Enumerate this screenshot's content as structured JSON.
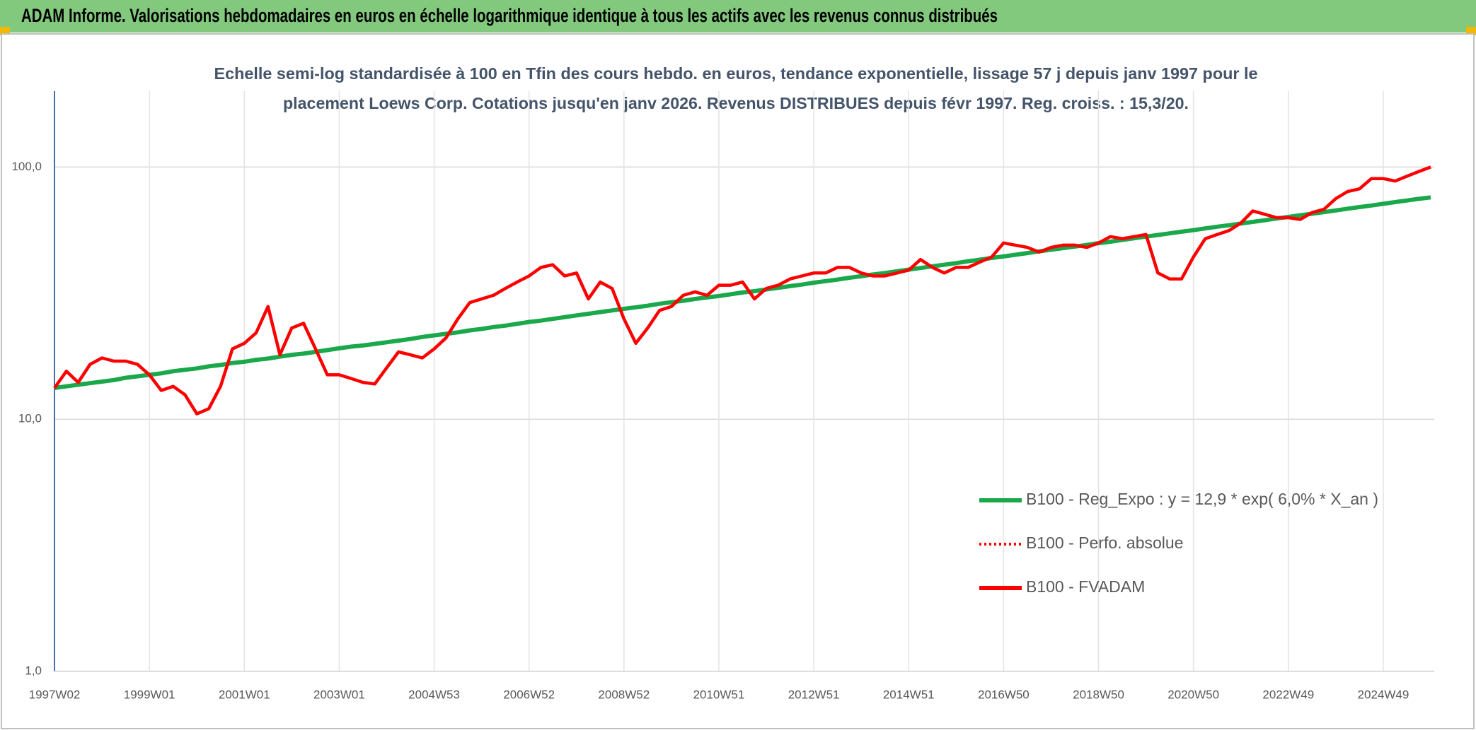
{
  "chart_data": {
    "type": "line",
    "title": "ADAM Informe. Valorisations hebdomadaires en euros en échelle logarithmique identique à tous les actifs avec les revenus connus distribués",
    "subtitle": [
      "Echelle semi-log standardisée à 100 en Tfin des cours hebdo. en euros, tendance exponentielle, lissage 57 j depuis janv 1997 pour le",
      "placement Loews Corp. Cotations jusqu'en janv 2026. Revenus DISTRIBUES depuis févr 1997. Reg. croiss. : 15,3/20."
    ],
    "categories": [
      "1997W02",
      null,
      null,
      null,
      null,
      null,
      null,
      null,
      "1999W01",
      null,
      null,
      null,
      null,
      null,
      null,
      null,
      "2001W01",
      null,
      null,
      null,
      null,
      null,
      null,
      null,
      "2003W01",
      null,
      null,
      null,
      null,
      null,
      null,
      null,
      "2004W53",
      null,
      null,
      null,
      null,
      null,
      null,
      null,
      "2006W52",
      null,
      null,
      null,
      null,
      null,
      null,
      null,
      "2008W52",
      null,
      null,
      null,
      null,
      null,
      null,
      null,
      "2010W51",
      null,
      null,
      null,
      null,
      null,
      null,
      null,
      "2012W51",
      null,
      null,
      null,
      null,
      null,
      null,
      null,
      "2014W51",
      null,
      null,
      null,
      null,
      null,
      null,
      null,
      "2016W50",
      null,
      null,
      null,
      null,
      null,
      null,
      null,
      "2018W50",
      null,
      null,
      null,
      null,
      null,
      null,
      null,
      "2020W50",
      null,
      null,
      null,
      null,
      null,
      null,
      null,
      "2022W49",
      null,
      null,
      null,
      null,
      null,
      null,
      null,
      "2024W49",
      null,
      null,
      null,
      null
    ],
    "series": [
      {
        "name": "B100 - Reg_Expo : y = 12,9 * exp( 6,0% *  X_an )",
        "color": "#1aa84b",
        "style": "solid",
        "values": [
          13.3,
          13.5,
          13.7,
          13.9,
          14.1,
          14.3,
          14.6,
          14.8,
          15.0,
          15.2,
          15.5,
          15.7,
          15.9,
          16.2,
          16.4,
          16.7,
          16.9,
          17.2,
          17.4,
          17.7,
          18.0,
          18.2,
          18.5,
          18.8,
          19.1,
          19.4,
          19.6,
          19.9,
          20.2,
          20.5,
          20.8,
          21.2,
          21.5,
          21.8,
          22.1,
          22.5,
          22.8,
          23.2,
          23.5,
          23.9,
          24.3,
          24.6,
          25.0,
          25.4,
          25.8,
          26.2,
          26.6,
          27.0,
          27.4,
          27.8,
          28.2,
          28.7,
          29.1,
          29.5,
          30.0,
          30.4,
          30.8,
          31.3,
          31.8,
          32.2,
          32.7,
          33.2,
          33.7,
          34.2,
          34.8,
          35.3,
          35.8,
          36.4,
          36.9,
          37.5,
          38.0,
          38.6,
          39.2,
          39.8,
          40.4,
          41.0,
          41.6,
          42.3,
          42.9,
          43.6,
          44.2,
          44.9,
          45.6,
          46.3,
          47.0,
          47.7,
          48.4,
          49.1,
          49.9,
          50.6,
          51.4,
          52.2,
          53.0,
          53.8,
          54.6,
          55.4,
          56.2,
          57.1,
          58.0,
          58.8,
          59.7,
          60.6,
          61.5,
          62.5,
          63.4,
          64.4,
          65.3,
          66.3,
          67.3,
          68.4,
          69.4,
          70.4,
          71.5,
          72.6,
          73.7,
          74.8,
          75.8
        ]
      },
      {
        "name": "B100 - Perfo. absolue",
        "color": "#ff0000",
        "style": "dotted",
        "values": [
          13.3,
          15.5,
          14,
          16.5,
          17.5,
          17,
          17,
          16.5,
          15,
          13,
          13.5,
          12.5,
          10.5,
          11,
          13.5,
          19,
          20,
          22,
          28,
          18,
          23,
          24,
          19,
          15,
          15,
          14.5,
          14,
          13.8,
          16,
          18.5,
          18,
          17.5,
          19,
          21,
          25,
          29,
          30,
          31,
          33,
          35,
          37,
          40,
          41,
          37,
          38,
          30,
          35,
          33,
          25,
          20,
          23,
          27,
          28,
          31,
          32,
          31,
          34,
          34,
          35,
          30,
          33,
          34,
          36,
          37,
          38,
          38,
          40,
          40,
          38,
          37,
          37,
          38,
          39,
          43,
          40,
          38,
          40,
          40,
          42,
          44,
          50,
          49,
          48,
          46,
          48,
          49,
          49,
          48,
          50,
          53,
          52,
          53,
          54,
          38,
          36,
          36,
          44,
          52,
          54,
          56,
          60,
          67,
          65,
          63,
          63,
          62,
          66,
          68,
          75,
          80,
          82,
          90,
          90,
          88,
          92,
          96,
          100
        ]
      },
      {
        "name": "B100 - FVADAM",
        "color": "#ff0000",
        "style": "solid",
        "values": [
          13.3,
          15.5,
          14,
          16.5,
          17.5,
          17,
          17,
          16.5,
          15,
          13,
          13.5,
          12.5,
          10.5,
          11,
          13.5,
          19,
          20,
          22,
          28,
          18,
          23,
          24,
          19,
          15,
          15,
          14.5,
          14,
          13.8,
          16,
          18.5,
          18,
          17.5,
          19,
          21,
          25,
          29,
          30,
          31,
          33,
          35,
          37,
          40,
          41,
          37,
          38,
          30,
          35,
          33,
          25,
          20,
          23,
          27,
          28,
          31,
          32,
          31,
          34,
          34,
          35,
          30,
          33,
          34,
          36,
          37,
          38,
          38,
          40,
          40,
          38,
          37,
          37,
          38,
          39,
          43,
          40,
          38,
          40,
          40,
          42,
          44,
          50,
          49,
          48,
          46,
          48,
          49,
          49,
          48,
          50,
          53,
          52,
          53,
          54,
          38,
          36,
          36,
          44,
          52,
          54,
          56,
          60,
          67,
          65,
          63,
          63,
          62,
          66,
          68,
          75,
          80,
          82,
          90,
          90,
          88,
          92,
          96,
          100
        ]
      }
    ],
    "ylim": [
      1,
      200
    ],
    "yticks": [
      {
        "value": 1,
        "label": "1,0"
      },
      {
        "value": 10,
        "label": "10,0"
      },
      {
        "value": 100,
        "label": "100,0"
      }
    ],
    "log_scale": true,
    "grid": true,
    "legend_position": "right"
  }
}
